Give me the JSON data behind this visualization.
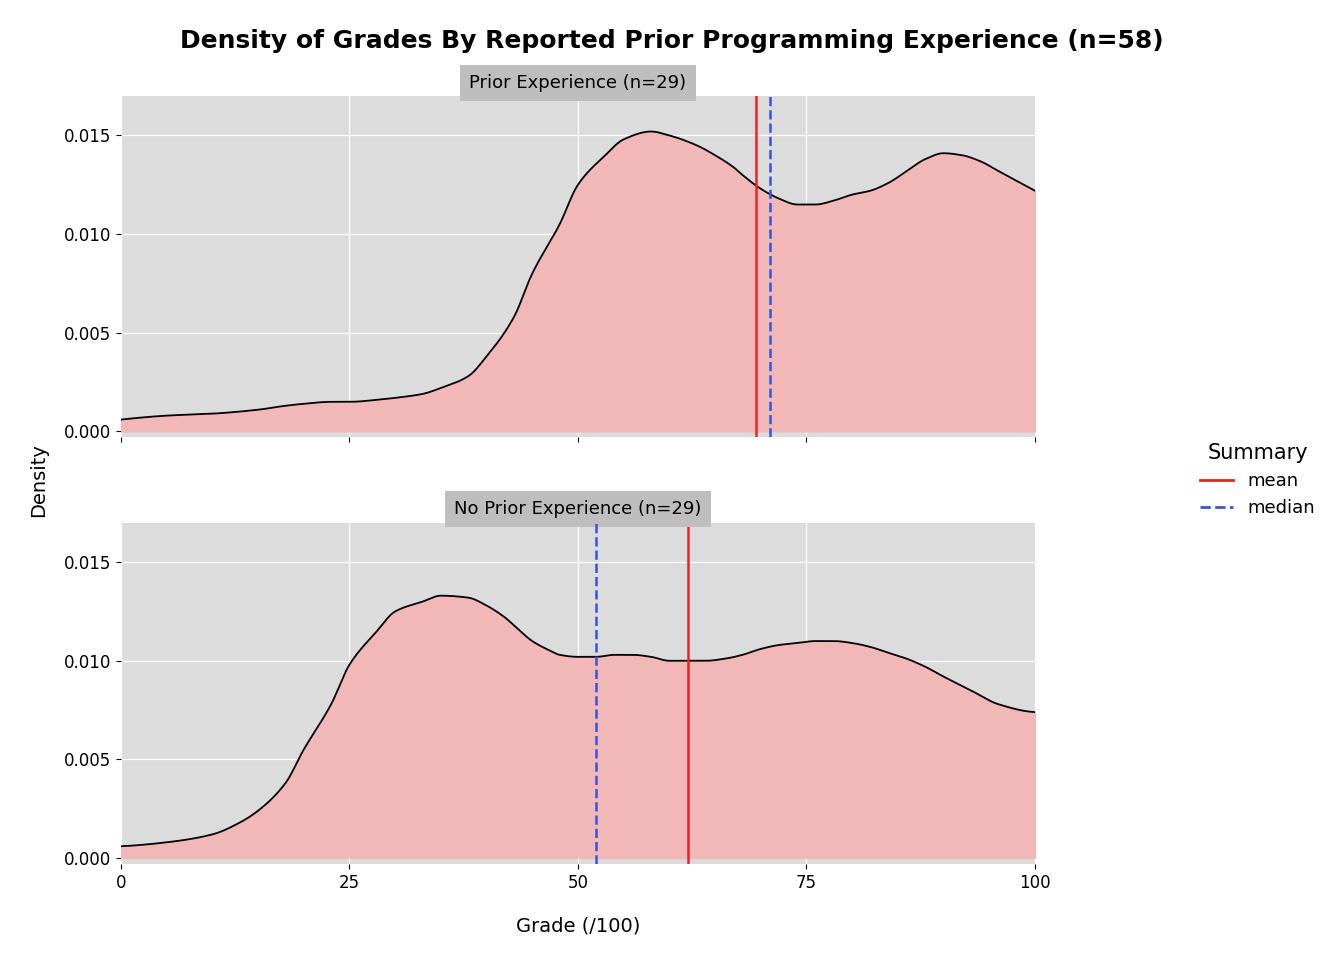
{
  "title": "Density of Grades By Reported Prior Programming Experience (n=58)",
  "xlabel": "Grade (/100)",
  "ylabel": "Density",
  "panel1_label": "Prior Experience (n=29)",
  "panel2_label": "No Prior Experience (n=29)",
  "prior_mean": 69.5,
  "prior_median": 71.0,
  "noprior_mean": 62.0,
  "noprior_median": 52.0,
  "xlim": [
    0,
    100
  ],
  "ylim": [
    -0.0002,
    0.017
  ],
  "yticks": [
    0.0,
    0.005,
    0.01,
    0.015
  ],
  "xticks": [
    0,
    25,
    50,
    75,
    100
  ],
  "fill_color": "#F2B8B8",
  "line_color": "#000000",
  "mean_color": "#EE2222",
  "median_color": "#3355DD",
  "plot_bg": "#DCDCDC",
  "strip_bg": "#C8C8C8",
  "title_fontsize": 18,
  "label_fontsize": 13,
  "tick_fontsize": 12,
  "legend_title": "Summary",
  "legend_mean": "mean",
  "legend_median": "median",
  "prior_kde_x": [
    0,
    5,
    10,
    15,
    18,
    20,
    23,
    25,
    28,
    30,
    33,
    35,
    38,
    40,
    43,
    45,
    48,
    50,
    53,
    55,
    58,
    60,
    63,
    65,
    67,
    68,
    70,
    72,
    74,
    76,
    78,
    80,
    82,
    84,
    86,
    88,
    90,
    92,
    94,
    96,
    98,
    100
  ],
  "prior_kde_y": [
    0.0006,
    0.0008,
    0.0009,
    0.0011,
    0.0013,
    0.0014,
    0.0015,
    0.0015,
    0.0016,
    0.0017,
    0.0019,
    0.0022,
    0.0028,
    0.0038,
    0.0058,
    0.008,
    0.0105,
    0.0125,
    0.014,
    0.0148,
    0.0152,
    0.015,
    0.0145,
    0.014,
    0.0134,
    0.013,
    0.0123,
    0.0118,
    0.0115,
    0.0115,
    0.0117,
    0.012,
    0.0122,
    0.0126,
    0.0132,
    0.0138,
    0.0141,
    0.014,
    0.0137,
    0.0132,
    0.0127,
    0.0122
  ],
  "noprior_kde_x": [
    0,
    5,
    10,
    13,
    15,
    18,
    20,
    23,
    25,
    28,
    30,
    33,
    35,
    38,
    40,
    42,
    43,
    45,
    47,
    48,
    50,
    52,
    54,
    56,
    58,
    60,
    62,
    64,
    66,
    68,
    70,
    72,
    74,
    76,
    78,
    80,
    82,
    84,
    86,
    88,
    90,
    93,
    96,
    100
  ],
  "noprior_kde_y": [
    0.0006,
    0.0008,
    0.0012,
    0.0018,
    0.0024,
    0.0038,
    0.0055,
    0.0078,
    0.0098,
    0.0115,
    0.0125,
    0.013,
    0.0133,
    0.0132,
    0.0128,
    0.0122,
    0.0118,
    0.011,
    0.0105,
    0.0103,
    0.0102,
    0.0102,
    0.0103,
    0.0103,
    0.0102,
    0.01,
    0.01,
    0.01,
    0.0101,
    0.0103,
    0.0106,
    0.0108,
    0.0109,
    0.011,
    0.011,
    0.0109,
    0.0107,
    0.0104,
    0.0101,
    0.0097,
    0.0092,
    0.0085,
    0.0078,
    0.0074
  ]
}
